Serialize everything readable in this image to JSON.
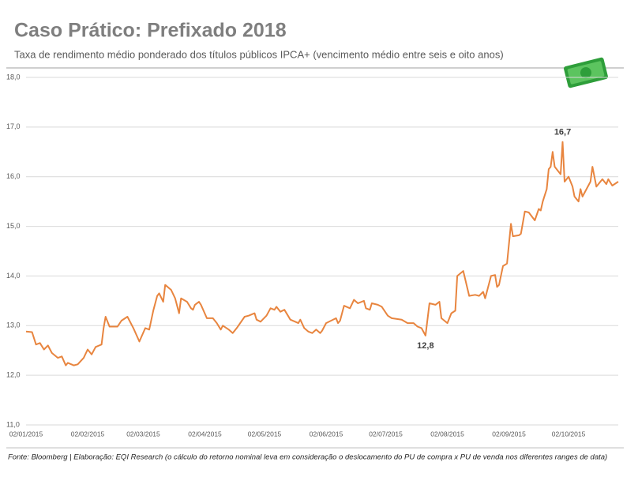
{
  "chart_data": {
    "type": "line",
    "title": "Caso Prático: Prefixado 2018",
    "subtitle": "Taxa de rendimento médio ponderado dos títulos públicos IPCA+ (vencimento médio entre seis e oito anos)",
    "source": "Fonte: Bloomberg | Elaboração: EQI Research (o cálculo do retorno nominal leva em consideração o deslocamento do PU de compra x PU de venda nos diferentes ranges de data)",
    "x": [
      "02/01/2015",
      "05/01/2015",
      "07/01/2015",
      "09/01/2015",
      "11/01/2015",
      "13/01/2015",
      "15/01/2015",
      "18/01/2015",
      "20/01/2015",
      "22/01/2015",
      "23/01/2015",
      "26/01/2015",
      "28/01/2015",
      "31/01/2015",
      "02/02/2015",
      "04/02/2015",
      "06/02/2015",
      "09/02/2015",
      "10/02/2015",
      "11/02/2015",
      "13/02/2015",
      "17/02/2015",
      "19/02/2015",
      "22/02/2015",
      "25/02/2015",
      "28/02/2015",
      "03/03/2015",
      "05/03/2015",
      "07/03/2015",
      "09/03/2015",
      "10/03/2015",
      "12/03/2015",
      "13/03/2015",
      "16/03/2015",
      "18/03/2015",
      "20/03/2015",
      "21/03/2015",
      "24/03/2015",
      "26/03/2015",
      "27/03/2015",
      "28/03/2015",
      "30/03/2015",
      "31/03/2015",
      "03/04/2015",
      "06/04/2015",
      "08/04/2015",
      "10/04/2015",
      "11/04/2015",
      "14/04/2015",
      "16/04/2015",
      "18/04/2015",
      "22/04/2015",
      "24/04/2015",
      "27/04/2015",
      "28/04/2015",
      "30/04/2015",
      "03/05/2015",
      "05/05/2015",
      "07/05/2015",
      "08/05/2015",
      "10/05/2015",
      "12/05/2015",
      "15/05/2015",
      "19/05/2015",
      "20/05/2015",
      "22/05/2015",
      "24/05/2015",
      "26/05/2015",
      "28/05/2015",
      "30/05/2015",
      "31/05/2015",
      "02/06/2015",
      "07/06/2015",
      "08/06/2015",
      "09/06/2015",
      "11/06/2015",
      "14/06/2015",
      "16/06/2015",
      "18/06/2015",
      "21/06/2015",
      "22/06/2015",
      "24/06/2015",
      "25/06/2015",
      "28/06/2015",
      "30/06/2015",
      "03/07/2015",
      "05/07/2015",
      "10/07/2015",
      "13/07/2015",
      "16/07/2015",
      "18/07/2015",
      "20/07/2015",
      "22/07/2015",
      "24/07/2015",
      "27/07/2015",
      "29/07/2015",
      "30/07/2015",
      "02/08/2015",
      "04/08/2015",
      "06/08/2015",
      "07/08/2015",
      "10/08/2015",
      "13/08/2015",
      "16/08/2015",
      "18/08/2015",
      "20/08/2015",
      "21/08/2015",
      "24/08/2015",
      "26/08/2015",
      "27/08/2015",
      "28/08/2015",
      "30/08/2015",
      "01/09/2015",
      "03/09/2015",
      "04/09/2015",
      "07/09/2015",
      "08/09/2015",
      "10/09/2015",
      "12/09/2015",
      "15/09/2015",
      "17/09/2015",
      "18/09/2015",
      "19/09/2015",
      "21/09/2015",
      "22/09/2015",
      "23/09/2015",
      "24/09/2015",
      "25/09/2015",
      "28/09/2015",
      "29/09/2015",
      "30/09/2015",
      "02/10/2015",
      "04/10/2015",
      "05/10/2015",
      "07/10/2015",
      "08/10/2015",
      "09/10/2015",
      "13/10/2015",
      "14/10/2015",
      "16/10/2015",
      "19/10/2015",
      "21/10/2015",
      "22/10/2015",
      "24/10/2015",
      "27/10/2015"
    ],
    "series": [
      {
        "color": "#e8853f",
        "values": [
          12.88,
          12.87,
          12.62,
          12.65,
          12.52,
          12.6,
          12.45,
          12.35,
          12.38,
          12.2,
          12.25,
          12.2,
          12.22,
          12.35,
          12.52,
          12.42,
          12.57,
          12.62,
          12.95,
          13.18,
          12.98,
          12.98,
          13.1,
          13.18,
          12.95,
          12.68,
          12.95,
          12.92,
          13.3,
          13.6,
          13.65,
          13.48,
          13.82,
          13.72,
          13.55,
          13.25,
          13.55,
          13.48,
          13.35,
          13.32,
          13.42,
          13.48,
          13.42,
          13.15,
          13.15,
          13.05,
          12.92,
          13.0,
          12.92,
          12.85,
          12.95,
          13.18,
          13.2,
          13.25,
          13.12,
          13.08,
          13.2,
          13.35,
          13.32,
          13.38,
          13.28,
          13.32,
          13.12,
          13.05,
          13.12,
          12.95,
          12.88,
          12.85,
          12.92,
          12.85,
          12.9,
          13.05,
          13.15,
          13.05,
          13.1,
          13.4,
          13.35,
          13.52,
          13.45,
          13.5,
          13.35,
          13.32,
          13.45,
          13.42,
          13.38,
          13.2,
          13.15,
          13.12,
          13.05,
          13.05,
          12.98,
          12.95,
          12.8,
          13.45,
          13.42,
          13.48,
          13.15,
          13.05,
          13.25,
          13.3,
          14.0,
          14.1,
          13.6,
          13.62,
          13.6,
          13.68,
          13.55,
          14.0,
          14.02,
          13.78,
          13.82,
          14.2,
          14.25,
          15.05,
          14.8,
          14.82,
          14.85,
          15.3,
          15.28,
          15.12,
          15.35,
          15.32,
          15.5,
          15.75,
          16.15,
          16.2,
          16.5,
          16.2,
          16.05,
          16.7,
          15.9,
          16.0,
          15.8,
          15.6,
          15.5,
          15.75,
          15.6,
          15.9,
          16.2,
          15.8,
          15.95,
          15.85,
          15.95,
          15.82,
          15.9
        ]
      }
    ],
    "xlim": [
      "02/01/2015",
      "27/10/2015"
    ],
    "xticks": [
      "02/01/2015",
      "02/02/2015",
      "02/03/2015",
      "02/04/2015",
      "02/05/2015",
      "02/06/2015",
      "02/07/2015",
      "02/08/2015",
      "02/09/2015",
      "02/10/2015"
    ],
    "ylim": [
      11,
      18
    ],
    "yticks": [
      {
        "value": 11,
        "label": "11,0"
      },
      {
        "value": 12,
        "label": "12,0"
      },
      {
        "value": 13,
        "label": "13,0"
      },
      {
        "value": 14,
        "label": "14,0"
      },
      {
        "value": 15,
        "label": "15,0"
      },
      {
        "value": 16,
        "label": "16,0"
      },
      {
        "value": 17,
        "label": "17,0"
      },
      {
        "value": 18,
        "label": "18,0"
      }
    ],
    "grid": true,
    "annotations": [
      {
        "label": "16,7",
        "x": "29/09/2015",
        "value": 16.7
      },
      {
        "label": "12,8",
        "x": "22/07/2015",
        "value": 12.8
      }
    ]
  }
}
